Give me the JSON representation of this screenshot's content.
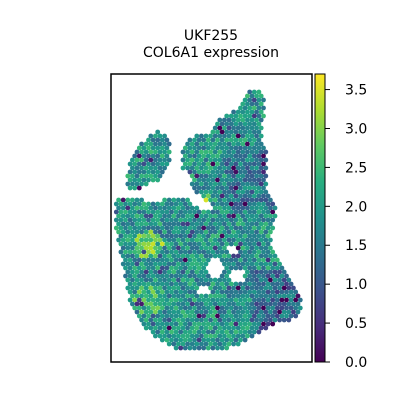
{
  "chart_data": {
    "type": "scatter",
    "title": "UKF255",
    "subtitle": "COL6A1 expression",
    "xlabel": "",
    "ylabel": "",
    "grid": false,
    "legend": "none",
    "colorbar": {
      "colormap": "viridis",
      "range": [
        0.0,
        3.7
      ],
      "ticks": [
        "0.0",
        "0.5",
        "1.0",
        "1.5",
        "2.0",
        "2.5",
        "3.0",
        "3.5"
      ]
    },
    "marker_shape": "hexagon",
    "description_level": "spatial transcriptomics spot map; individual spot values not labeled"
  },
  "colors": {
    "axes_frame": "#000000",
    "background": "#ffffff"
  }
}
